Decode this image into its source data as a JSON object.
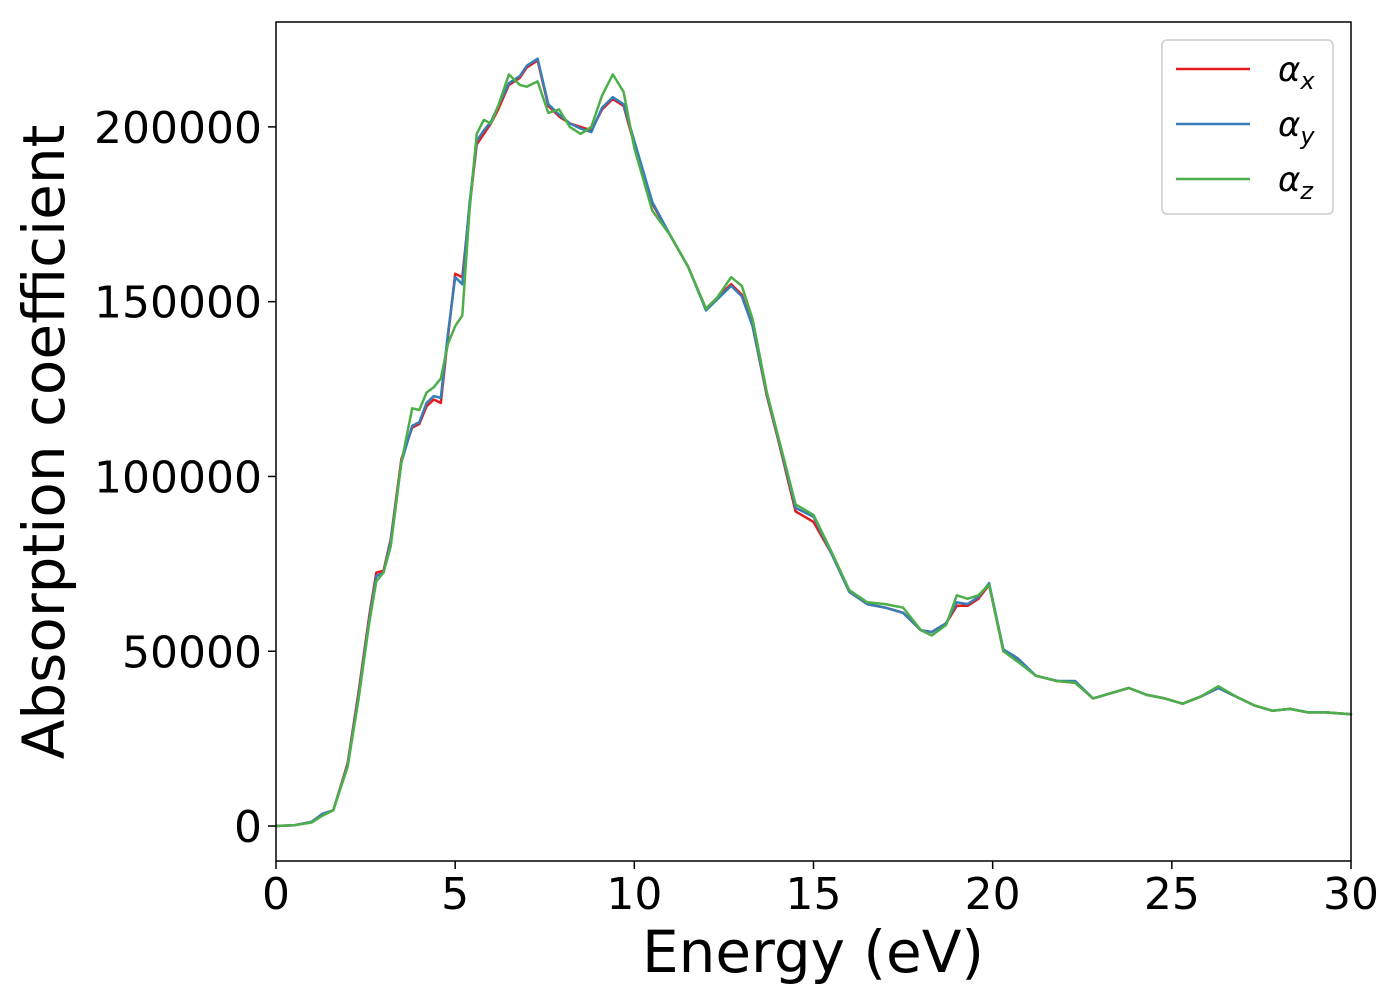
{
  "chart_data": {
    "type": "line",
    "xlabel": "Energy (eV)",
    "ylabel": "Absorption coefficient",
    "xlim": [
      0,
      30
    ],
    "ylim": [
      -10000,
      230000
    ],
    "xticks": [
      0,
      5,
      10,
      15,
      20,
      25,
      30
    ],
    "yticks": [
      0,
      50000,
      100000,
      150000,
      200000
    ],
    "grid": false,
    "legend_position": "top-right",
    "series": [
      {
        "name": "αx",
        "legend_main": "α",
        "legend_sub": "x",
        "color": "#e41a1c",
        "x": [
          0,
          0.5,
          1.0,
          1.3,
          1.6,
          2.0,
          2.3,
          2.6,
          2.8,
          3.0,
          3.2,
          3.5,
          3.8,
          4.0,
          4.2,
          4.4,
          4.6,
          4.8,
          5.0,
          5.2,
          5.4,
          5.6,
          5.8,
          6.0,
          6.2,
          6.5,
          6.8,
          7.0,
          7.3,
          7.6,
          7.9,
          8.2,
          8.5,
          8.8,
          9.1,
          9.4,
          9.7,
          10.0,
          10.5,
          11.0,
          11.5,
          12.0,
          12.3,
          12.7,
          13.0,
          13.3,
          13.7,
          14.0,
          14.5,
          15.0,
          15.5,
          16.0,
          16.5,
          17.0,
          17.5,
          18.0,
          18.3,
          18.7,
          19.0,
          19.3,
          19.6,
          19.9,
          20.3,
          20.7,
          21.2,
          21.8,
          22.3,
          22.8,
          23.3,
          23.8,
          24.3,
          24.8,
          25.3,
          25.8,
          26.3,
          26.8,
          27.3,
          27.8,
          28.3,
          28.8,
          29.3,
          30.0
        ],
        "y": [
          0,
          200,
          1200,
          3500,
          4500,
          18000,
          38000,
          60000,
          72500,
          73000,
          82000,
          105000,
          114000,
          115000,
          120000,
          122000,
          121000,
          140000,
          158000,
          157000,
          177000,
          195000,
          198000,
          201000,
          205000,
          212000,
          214000,
          217000,
          219000,
          206000,
          203000,
          201000,
          200000,
          199000,
          205000,
          208000,
          206000,
          195000,
          178000,
          169000,
          160000,
          148000,
          151000,
          155000,
          152000,
          143000,
          123000,
          111000,
          90000,
          87000,
          78000,
          67000,
          63500,
          62500,
          61000,
          56000,
          55500,
          58000,
          63000,
          63000,
          65000,
          69000,
          50000,
          47500,
          43000,
          41500,
          41000,
          36500,
          38000,
          39500,
          37500,
          36500,
          35000,
          37000,
          39500,
          37000,
          34500,
          33000,
          33500,
          32500,
          32500,
          32000
        ]
      },
      {
        "name": "αy",
        "legend_main": "α",
        "legend_sub": "y",
        "color": "#377eb8",
        "x": [
          0,
          0.5,
          1.0,
          1.3,
          1.6,
          2.0,
          2.3,
          2.6,
          2.8,
          3.0,
          3.2,
          3.5,
          3.8,
          4.0,
          4.2,
          4.4,
          4.6,
          4.8,
          5.0,
          5.2,
          5.4,
          5.6,
          5.8,
          6.0,
          6.2,
          6.5,
          6.8,
          7.0,
          7.3,
          7.6,
          7.9,
          8.2,
          8.5,
          8.8,
          9.1,
          9.4,
          9.7,
          10.0,
          10.5,
          11.0,
          11.5,
          12.0,
          12.3,
          12.7,
          13.0,
          13.3,
          13.7,
          14.0,
          14.5,
          15.0,
          15.5,
          16.0,
          16.5,
          17.0,
          17.5,
          18.0,
          18.3,
          18.7,
          19.0,
          19.3,
          19.6,
          19.9,
          20.3,
          20.7,
          21.2,
          21.8,
          22.3,
          22.8,
          23.3,
          23.8,
          24.3,
          24.8,
          25.3,
          25.8,
          26.3,
          26.8,
          27.3,
          27.8,
          28.3,
          28.8,
          29.3,
          30.0
        ],
        "y": [
          0,
          200,
          1200,
          3500,
          4500,
          17500,
          37000,
          59000,
          71500,
          72500,
          81500,
          104000,
          114500,
          115500,
          121000,
          123000,
          122500,
          141000,
          157000,
          155000,
          178000,
          196000,
          199000,
          201500,
          206000,
          212500,
          214500,
          217500,
          219500,
          206500,
          203500,
          201000,
          199500,
          198500,
          205500,
          208500,
          206500,
          196000,
          178500,
          169000,
          160000,
          147500,
          150500,
          154500,
          151500,
          143000,
          123500,
          111500,
          91000,
          88500,
          78000,
          67000,
          63500,
          62500,
          61000,
          56000,
          55500,
          58000,
          64000,
          63500,
          65500,
          69500,
          50500,
          48000,
          43000,
          41500,
          41500,
          36500,
          38000,
          39500,
          37500,
          36500,
          35000,
          37000,
          39500,
          37000,
          34500,
          33000,
          33500,
          32500,
          32500,
          32000
        ]
      },
      {
        "name": "αz",
        "legend_main": "α",
        "legend_sub": "z",
        "color": "#4daf4a",
        "x": [
          0,
          0.5,
          1.0,
          1.3,
          1.6,
          2.0,
          2.3,
          2.6,
          2.8,
          3.0,
          3.2,
          3.5,
          3.8,
          4.0,
          4.2,
          4.4,
          4.6,
          4.8,
          5.0,
          5.2,
          5.4,
          5.6,
          5.8,
          6.0,
          6.2,
          6.5,
          6.8,
          7.0,
          7.3,
          7.6,
          7.9,
          8.2,
          8.5,
          8.8,
          9.1,
          9.4,
          9.7,
          10.0,
          10.5,
          11.0,
          11.5,
          12.0,
          12.3,
          12.7,
          13.0,
          13.3,
          13.7,
          14.0,
          14.5,
          15.0,
          15.5,
          16.0,
          16.5,
          17.0,
          17.5,
          18.0,
          18.3,
          18.7,
          19.0,
          19.3,
          19.6,
          19.9,
          20.3,
          20.7,
          21.2,
          21.8,
          22.3,
          22.8,
          23.3,
          23.8,
          24.3,
          24.8,
          25.3,
          25.8,
          26.3,
          26.8,
          27.3,
          27.8,
          28.3,
          28.8,
          29.3,
          30.0
        ],
        "y": [
          0,
          200,
          1000,
          3000,
          4500,
          17000,
          36000,
          58000,
          70000,
          72500,
          80000,
          104000,
          119500,
          119000,
          124000,
          125500,
          128000,
          138000,
          143000,
          146000,
          176000,
          198000,
          202000,
          201000,
          206000,
          215000,
          212000,
          211500,
          213000,
          204000,
          205000,
          200000,
          198000,
          200000,
          209000,
          215000,
          210000,
          194000,
          176000,
          169000,
          160000,
          148000,
          151000,
          157000,
          154500,
          145000,
          124000,
          112000,
          92000,
          89000,
          78500,
          67500,
          64000,
          63500,
          62500,
          56000,
          54500,
          57500,
          66000,
          65000,
          66000,
          69000,
          50000,
          47000,
          43000,
          41500,
          41000,
          36500,
          38000,
          39500,
          37500,
          36500,
          35000,
          37000,
          40000,
          37000,
          34500,
          33000,
          33500,
          32500,
          32500,
          32000
        ]
      }
    ]
  }
}
